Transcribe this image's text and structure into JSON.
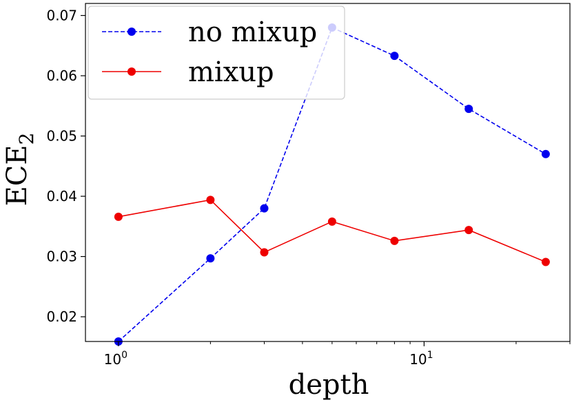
{
  "chart_data": {
    "type": "line",
    "xlabel": "depth",
    "ylabel": {
      "base": "ECE",
      "sub": "2"
    },
    "xscale": "log",
    "xlim": [
      0.78,
      30
    ],
    "ylim": [
      0.0159,
      0.072
    ],
    "y_ticks": [
      {
        "v": 0.02,
        "label": "0.02"
      },
      {
        "v": 0.03,
        "label": "0.03"
      },
      {
        "v": 0.04,
        "label": "0.04"
      },
      {
        "v": 0.05,
        "label": "0.05"
      },
      {
        "v": 0.06,
        "label": "0.06"
      },
      {
        "v": 0.07,
        "label": "0.07"
      }
    ],
    "x_ticks": [
      {
        "v": 1,
        "base": "10",
        "exp": "0"
      },
      {
        "v": 10,
        "base": "10",
        "exp": "1"
      }
    ],
    "x_minor": [
      2,
      3,
      4,
      5,
      6,
      7,
      8,
      9,
      20,
      30
    ],
    "grid": false,
    "legend_position": "top-left",
    "series": [
      {
        "name": "no mixup",
        "color": "#0000ee",
        "dashed": true,
        "x": [
          1,
          2,
          3,
          5,
          8,
          14,
          25
        ],
        "y": [
          0.0159,
          0.0297,
          0.038,
          0.068,
          0.0633,
          0.0545,
          0.047
        ]
      },
      {
        "name": "mixup",
        "color": "#ee0000",
        "dashed": false,
        "x": [
          1,
          2,
          3,
          5,
          8,
          14,
          25
        ],
        "y": [
          0.0366,
          0.0394,
          0.0307,
          0.0358,
          0.0326,
          0.0344,
          0.0291
        ]
      }
    ]
  }
}
